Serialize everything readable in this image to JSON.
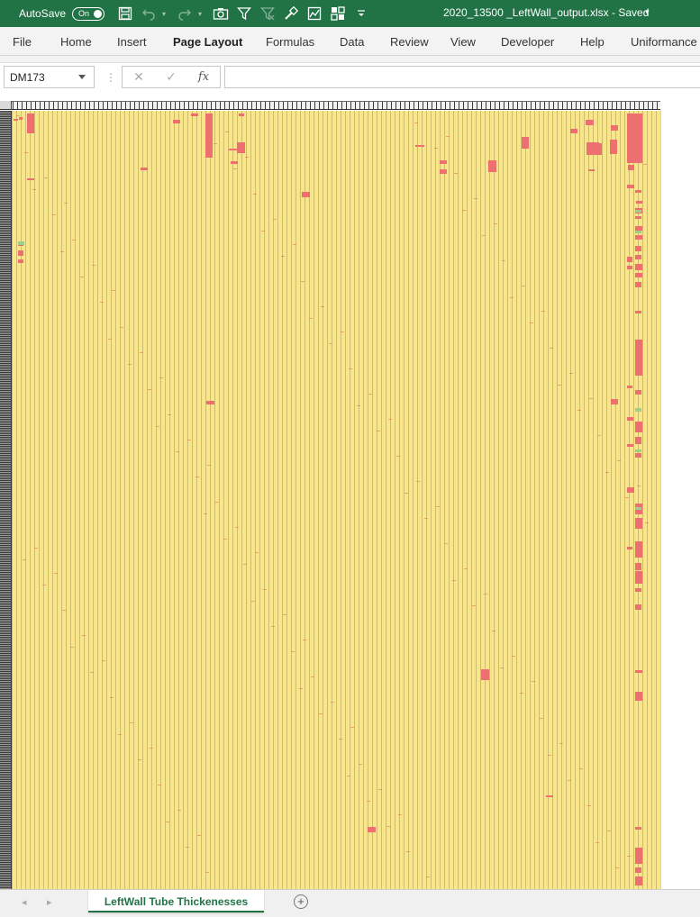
{
  "title_bar": {
    "autosave_label": "AutoSave",
    "autosave_state": "On",
    "document_title": "2020_13500 _LeftWall_output.xlsx  -  Saved",
    "qat_icons": [
      "save-icon",
      "undo-icon",
      "redo-icon",
      "camera-icon",
      "filter-icon",
      "clear-filter-icon",
      "format-painter-icon",
      "chart-icon",
      "pivot-icon",
      "customize-qat-icon"
    ]
  },
  "ribbon": {
    "tabs": [
      {
        "label": "File"
      },
      {
        "label": "Home"
      },
      {
        "label": "Insert"
      },
      {
        "label": "Page Layout"
      },
      {
        "label": "Formulas"
      },
      {
        "label": "Data"
      },
      {
        "label": "Review"
      },
      {
        "label": "View"
      },
      {
        "label": "Developer"
      },
      {
        "label": "Help"
      },
      {
        "label": "Uniformance"
      }
    ],
    "active_tab": "Page Layout"
  },
  "formula_bar": {
    "name_box": "DM173",
    "cancel_symbol": "✕",
    "enter_symbol": "✓",
    "fx_symbol": "fx",
    "formula_value": ""
  },
  "sheet_tabs": {
    "active": "LeftWall Tube Thickenesses",
    "add_symbol": "+"
  },
  "colors": {
    "accent": "#217346",
    "cell_yellow": "#f9e58a",
    "cell_red": "#ee6f6f",
    "cell_green": "#9ccf8a"
  }
}
